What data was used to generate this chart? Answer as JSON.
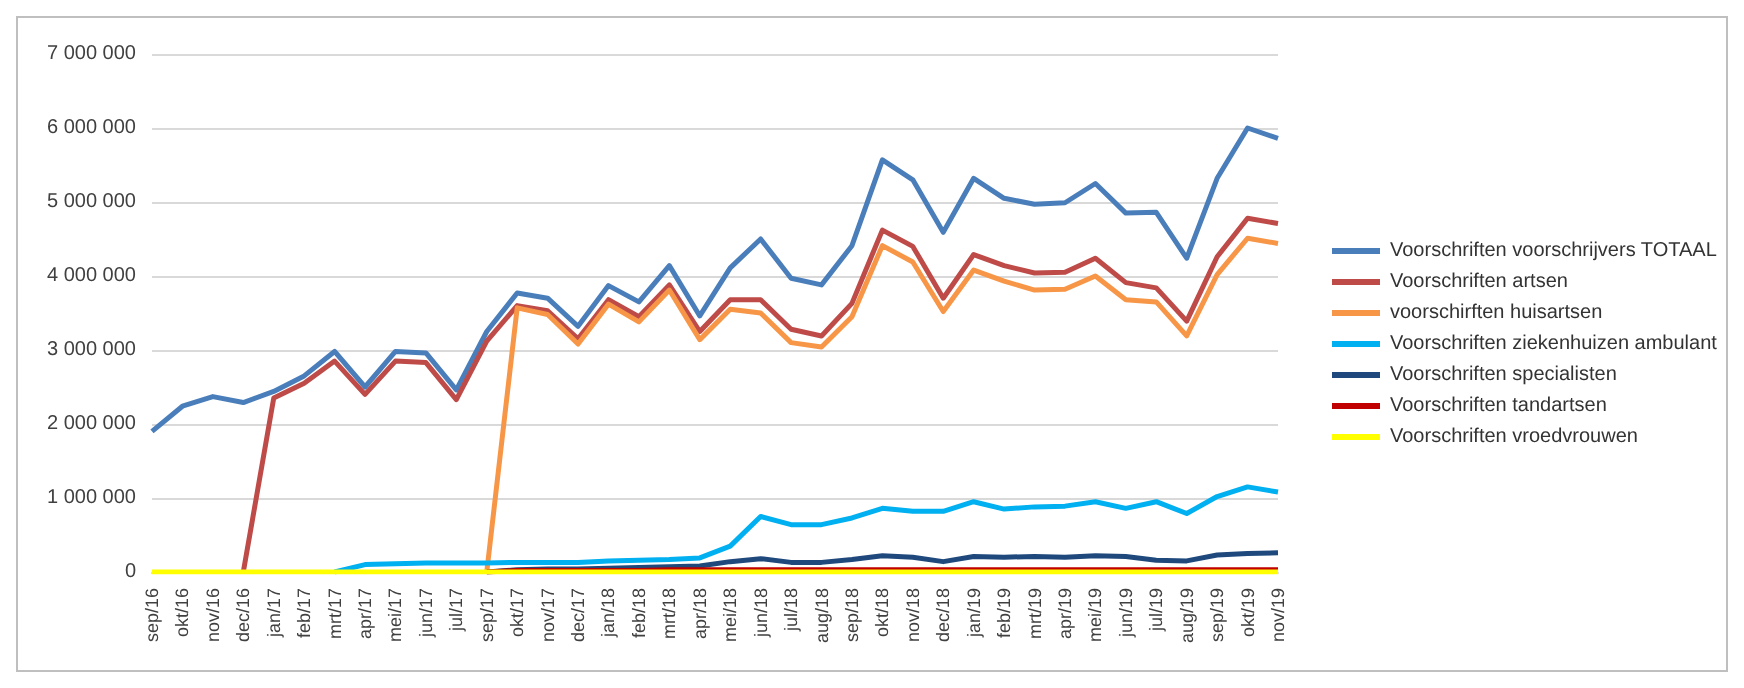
{
  "chart_data": {
    "type": "line",
    "categories": [
      "sep/16",
      "okt/16",
      "nov/16",
      "dec/16",
      "jan/17",
      "feb/17",
      "mrt/17",
      "apr/17",
      "mei/17",
      "jun/17",
      "jul/17",
      "sep/17",
      "okt/17",
      "nov/17",
      "dec/17",
      "jan/18",
      "feb/18",
      "mrt/18",
      "apr/18",
      "mei/18",
      "jun/18",
      "jul/18",
      "aug/18",
      "sep/18",
      "okt/18",
      "nov/18",
      "dec/18",
      "jan/19",
      "feb/19",
      "mrt/19",
      "apr/19",
      "mei/19",
      "jun/19",
      "jul/19",
      "aug/19",
      "sep/19",
      "okt/19",
      "nov/19"
    ],
    "series": [
      {
        "name": "Voorschriften voorschrijvers TOTAAL",
        "color": "#4a7ebb",
        "values": [
          1900000,
          2240000,
          2370000,
          2290000,
          2440000,
          2650000,
          2980000,
          2500000,
          2980000,
          2960000,
          2460000,
          3250000,
          3770000,
          3700000,
          3320000,
          3870000,
          3650000,
          4140000,
          3460000,
          4110000,
          4500000,
          3970000,
          3880000,
          4410000,
          5570000,
          5300000,
          4590000,
          5320000,
          5050000,
          4970000,
          4990000,
          5250000,
          4850000,
          4860000,
          4240000,
          5320000,
          6000000,
          5860000
        ]
      },
      {
        "name": "Voorschriften artsen",
        "color": "#be4b48",
        "values": [
          null,
          null,
          null,
          0,
          2350000,
          2550000,
          2850000,
          2400000,
          2850000,
          2830000,
          2330000,
          3120000,
          3600000,
          3530000,
          3150000,
          3680000,
          3450000,
          3880000,
          3250000,
          3680000,
          3680000,
          3280000,
          3190000,
          3630000,
          4620000,
          4400000,
          3700000,
          4290000,
          4140000,
          4040000,
          4050000,
          4240000,
          3910000,
          3840000,
          3390000,
          4260000,
          4780000,
          4710000
        ]
      },
      {
        "name": "voorschirften huisartsen",
        "color": "#f79646",
        "values": [
          null,
          null,
          null,
          null,
          null,
          null,
          null,
          null,
          null,
          null,
          null,
          0,
          3570000,
          3480000,
          3080000,
          3620000,
          3380000,
          3810000,
          3140000,
          3550000,
          3500000,
          3100000,
          3040000,
          3450000,
          4410000,
          4190000,
          3520000,
          4080000,
          3930000,
          3810000,
          3820000,
          4000000,
          3680000,
          3650000,
          3190000,
          4020000,
          4510000,
          4440000
        ]
      },
      {
        "name": "Voorschriften ziekenhuizen ambulant",
        "color": "#00b0f0",
        "values": [
          null,
          null,
          null,
          null,
          null,
          null,
          0,
          100000,
          110000,
          120000,
          120000,
          120000,
          130000,
          130000,
          130000,
          150000,
          160000,
          170000,
          190000,
          350000,
          750000,
          640000,
          640000,
          730000,
          860000,
          820000,
          820000,
          950000,
          850000,
          880000,
          890000,
          950000,
          860000,
          950000,
          790000,
          1020000,
          1150000,
          1080000
        ]
      },
      {
        "name": "Voorschriften specialisten",
        "color": "#1f497d",
        "values": [
          null,
          null,
          null,
          null,
          null,
          null,
          null,
          null,
          null,
          null,
          null,
          0,
          30000,
          40000,
          40000,
          50000,
          60000,
          70000,
          80000,
          140000,
          180000,
          130000,
          130000,
          170000,
          220000,
          200000,
          140000,
          210000,
          200000,
          210000,
          200000,
          220000,
          210000,
          160000,
          150000,
          230000,
          250000,
          260000
        ]
      },
      {
        "name": "Voorschriften tandartsen",
        "color": "#c00000",
        "values": [
          null,
          null,
          null,
          null,
          null,
          null,
          null,
          null,
          null,
          null,
          null,
          0,
          20000,
          20000,
          20000,
          20000,
          20000,
          30000,
          30000,
          30000,
          30000,
          30000,
          30000,
          30000,
          30000,
          30000,
          30000,
          30000,
          30000,
          30000,
          30000,
          30000,
          30000,
          30000,
          30000,
          30000,
          30000,
          30000
        ]
      },
      {
        "name": "Voorschriften vroedvrouwen",
        "color": "#ffff00",
        "values": [
          0,
          0,
          0,
          0,
          0,
          0,
          0,
          0,
          0,
          0,
          0,
          0,
          0,
          0,
          0,
          0,
          0,
          0,
          0,
          0,
          0,
          0,
          0,
          0,
          0,
          0,
          0,
          0,
          0,
          0,
          0,
          0,
          0,
          0,
          0,
          0,
          0,
          0
        ]
      }
    ],
    "ylim": [
      0,
      7000000
    ],
    "yticks": [
      {
        "value": 0,
        "label": "0"
      },
      {
        "value": 1000000,
        "label": "1 000 000"
      },
      {
        "value": 2000000,
        "label": "2 000 000"
      },
      {
        "value": 3000000,
        "label": "3 000 000"
      },
      {
        "value": 4000000,
        "label": "4 000 000"
      },
      {
        "value": 5000000,
        "label": "5 000 000"
      },
      {
        "value": 6000000,
        "label": "6 000 000"
      },
      {
        "value": 7000000,
        "label": "7 000 000"
      }
    ],
    "grid": "y",
    "legend": "right",
    "marker": "none",
    "line_style": "solid"
  }
}
